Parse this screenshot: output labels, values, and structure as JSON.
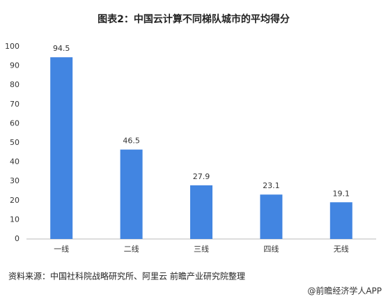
{
  "chart_data": {
    "type": "bar",
    "title": "图表2：中国云计算不同梯队城市的平均得分",
    "categories": [
      "一线",
      "二线",
      "三线",
      "四线",
      "无线"
    ],
    "values": [
      94.5,
      46.5,
      27.9,
      23.1,
      19.1
    ],
    "color": "#4285e1",
    "ylim": [
      0,
      100
    ],
    "yticks": [
      0,
      10,
      20,
      30,
      40,
      50,
      60,
      70,
      80,
      90,
      100
    ],
    "grid": false,
    "source": "资料来源：中国社科院战略研究所、阿里云  前瞻产业研究院整理",
    "credit": "@前瞻经济学人APP"
  }
}
